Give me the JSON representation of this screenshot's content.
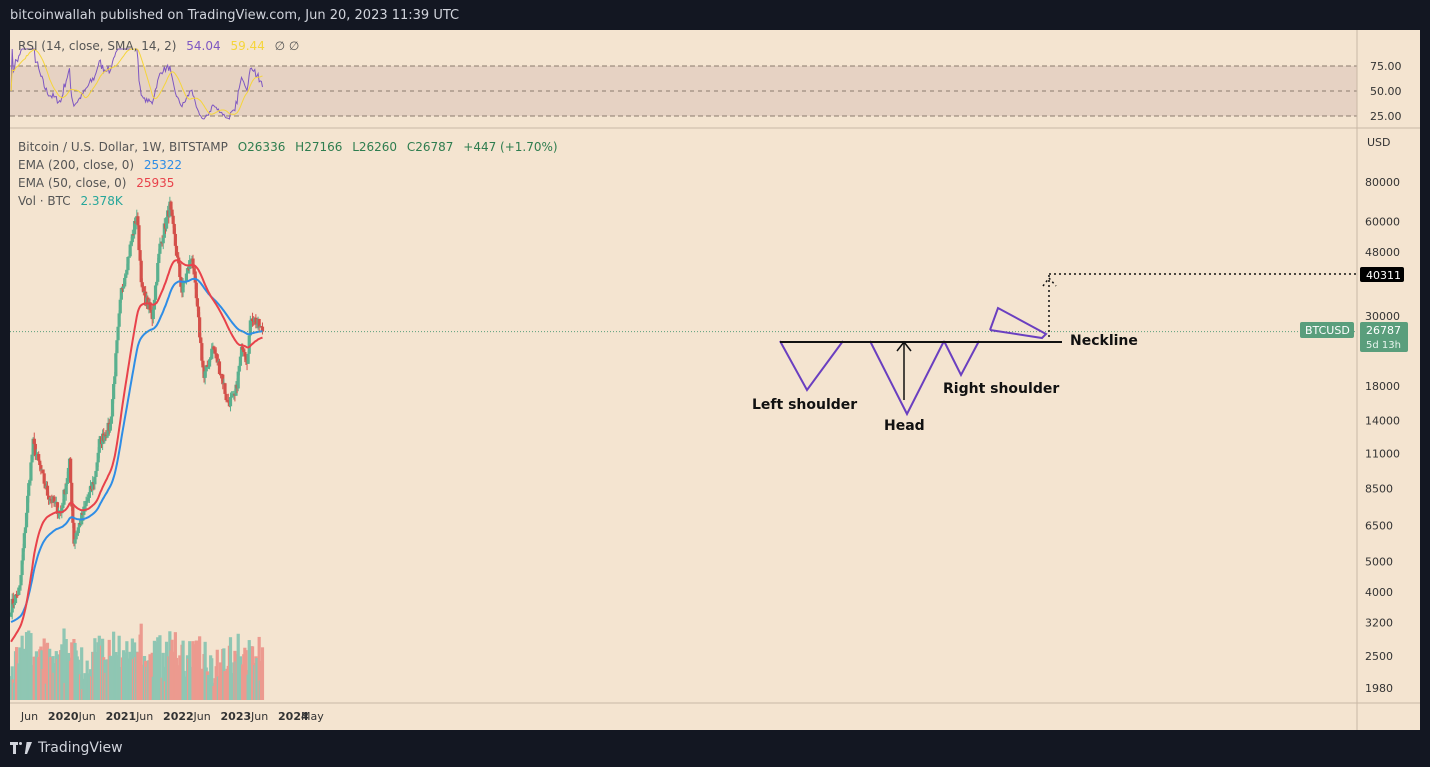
{
  "header": {
    "published": "bitcoinwallah published on TradingView.com, Jun 20, 2023 11:39 UTC"
  },
  "footer": {
    "brand": "TradingView"
  },
  "rsi_legend": {
    "name": "RSI (14, close, SMA, 14, 2)",
    "rsi_value": "54.04",
    "sma_value": "59.44",
    "icons": "∅  ∅"
  },
  "main_legend": {
    "symbol": "Bitcoin / U.S. Dollar, 1W, BITSTAMP",
    "open": "O26336",
    "high": "H27166",
    "low": "L26260",
    "close": "C26787",
    "change": "+447 (+1.70%)",
    "ema200_label": "EMA (200, close, 0)",
    "ema200_value": "25322",
    "ema50_label": "EMA (50, close, 0)",
    "ema50_value": "25935",
    "vol_label": "Vol · BTC",
    "vol_value": "2.378K"
  },
  "colors": {
    "up": "#5ab08e",
    "down": "#d4504a",
    "ema50": "#e8424b",
    "ema200": "#2e8de6",
    "rsi": "#7e57c2",
    "rsi_sma": "#f5d53b",
    "vol_up": "#8fc6b3",
    "vol_down": "#ec9a8f",
    "price_tag": "#5a9e7c",
    "target_tag": "#000000"
  },
  "annotations": {
    "left_shoulder": "Left shoulder",
    "head": "Head",
    "right_shoulder": "Right shoulder",
    "neckline": "Neckline"
  },
  "tags": {
    "target": "40311",
    "symbol": "BTCUSD",
    "price": "26787",
    "countdown": "5d 13h"
  },
  "chart_data": {
    "type": "candlestick",
    "title": "Bitcoin / U.S. Dollar, 1W, BITSTAMP",
    "y_scale": "log",
    "ylabel": "USD",
    "ylim": [
      1700,
      105000
    ],
    "y_ticks": [
      1980,
      2500,
      3200,
      4000,
      5000,
      6500,
      8500,
      11000,
      14000,
      18000,
      30000,
      48000,
      60000,
      80000
    ],
    "x_ticks": [
      "Jun",
      "2020",
      "Jun",
      "2021",
      "Jun",
      "2022",
      "Jun",
      "2023",
      "Jun",
      "2024",
      "May"
    ],
    "rsi_ticks": [
      25,
      50,
      75
    ],
    "close_keypoints": [
      {
        "date": "2019-02-04",
        "close": 3600
      },
      {
        "date": "2019-04-01",
        "close": 4100
      },
      {
        "date": "2019-05-27",
        "close": 8700
      },
      {
        "date": "2019-06-24",
        "close": 11800
      },
      {
        "date": "2019-09-23",
        "close": 8200
      },
      {
        "date": "2019-12-16",
        "close": 7100
      },
      {
        "date": "2020-02-10",
        "close": 10200
      },
      {
        "date": "2020-03-09",
        "close": 5800
      },
      {
        "date": "2020-07-20",
        "close": 9200
      },
      {
        "date": "2020-08-17",
        "close": 11900
      },
      {
        "date": "2020-10-26",
        "close": 13500
      },
      {
        "date": "2021-01-04",
        "close": 36000
      },
      {
        "date": "2021-04-12",
        "close": 63000
      },
      {
        "date": "2021-05-17",
        "close": 36000
      },
      {
        "date": "2021-07-19",
        "close": 30000
      },
      {
        "date": "2021-09-06",
        "close": 50000
      },
      {
        "date": "2021-11-08",
        "close": 67000
      },
      {
        "date": "2022-01-24",
        "close": 36000
      },
      {
        "date": "2022-03-28",
        "close": 47000
      },
      {
        "date": "2022-06-13",
        "close": 19000
      },
      {
        "date": "2022-08-08",
        "close": 24000
      },
      {
        "date": "2022-10-03",
        "close": 19500
      },
      {
        "date": "2022-11-07",
        "close": 16000
      },
      {
        "date": "2022-12-26",
        "close": 16500
      },
      {
        "date": "2023-02-13",
        "close": 24500
      },
      {
        "date": "2023-03-13",
        "close": 22000
      },
      {
        "date": "2023-04-10",
        "close": 30300
      },
      {
        "date": "2023-06-19",
        "close": 26787
      }
    ],
    "ema50_last": 25935,
    "ema200_last": 25322,
    "rsi_last": 54.04,
    "rsi_sma_last": 59.44,
    "target": 40311,
    "last_price": 26787
  }
}
